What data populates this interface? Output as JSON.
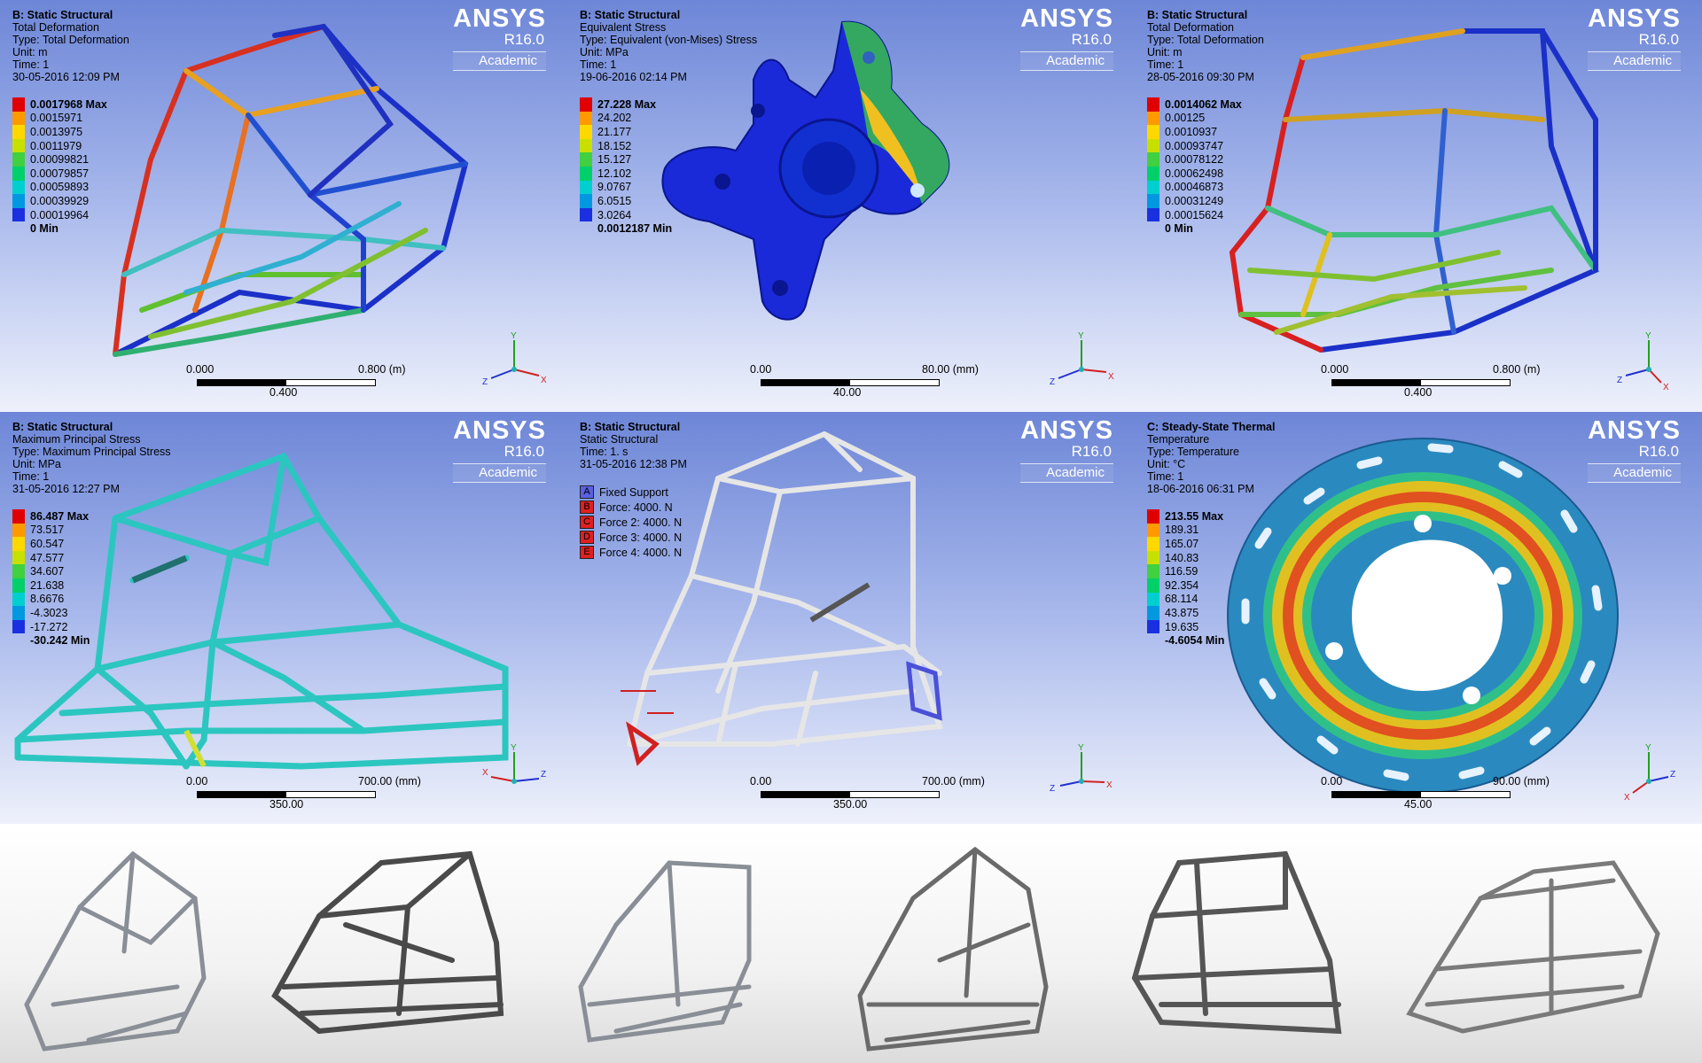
{
  "panels": [
    {
      "header": [
        "B: Static Structural",
        "Total Deformation",
        "Type: Total Deformation",
        "Unit: m",
        "Time: 1",
        "30-05-2016 12:09 PM"
      ],
      "brand": {
        "name": "ANSYS",
        "version": "R16.0",
        "edition": "Academic"
      },
      "legend": [
        "0.0017968 Max",
        "0.0015971",
        "0.0013975",
        "0.0011979",
        "0.00099821",
        "0.00079857",
        "0.00059893",
        "0.00039929",
        "0.00019964",
        "0 Min"
      ],
      "scale": {
        "start": "0.000",
        "end": "0.800 (m)",
        "mid": "0.400"
      },
      "triad": [
        "Y",
        "Z",
        "X"
      ]
    },
    {
      "header": [
        "B: Static Structural",
        "Equivalent Stress",
        "Type: Equivalent (von-Mises) Stress",
        "Unit: MPa",
        "Time: 1",
        "19-06-2016 02:14 PM"
      ],
      "brand": {
        "name": "ANSYS",
        "version": "R16.0",
        "edition": "Academic"
      },
      "legend": [
        "27.228 Max",
        "24.202",
        "21.177",
        "18.152",
        "15.127",
        "12.102",
        "9.0767",
        "6.0515",
        "3.0264",
        "0.0012187 Min"
      ],
      "scale": {
        "start": "0.00",
        "end": "80.00 (mm)",
        "mid": "40.00"
      },
      "triad": [
        "Y",
        "Z",
        "X"
      ]
    },
    {
      "header": [
        "B: Static Structural",
        "Total Deformation",
        "Type: Total Deformation",
        "Unit: m",
        "Time: 1",
        "28-05-2016 09:30 PM"
      ],
      "brand": {
        "name": "ANSYS",
        "version": "R16.0",
        "edition": "Academic"
      },
      "legend": [
        "0.0014062 Max",
        "0.00125",
        "0.0010937",
        "0.00093747",
        "0.00078122",
        "0.00062498",
        "0.00046873",
        "0.00031249",
        "0.00015624",
        "0 Min"
      ],
      "scale": {
        "start": "0.000",
        "end": "0.800 (m)",
        "mid": "0.400"
      },
      "triad": [
        "Y",
        "Z",
        "X"
      ]
    },
    {
      "header": [
        "B: Static Structural",
        "Maximum Principal Stress",
        "Type: Maximum Principal Stress",
        "Unit: MPa",
        "Time: 1",
        "31-05-2016 12:27 PM"
      ],
      "brand": {
        "name": "ANSYS",
        "version": "R16.0",
        "edition": "Academic"
      },
      "legend": [
        "86.487 Max",
        "73.517",
        "60.547",
        "47.577",
        "34.607",
        "21.638",
        "8.6676",
        "-4.3023",
        "-17.272",
        "-30.242 Min"
      ],
      "scale": {
        "start": "0.00",
        "end": "700.00 (mm)",
        "mid": "350.00"
      },
      "triad": [
        "Y",
        "X",
        "Z"
      ]
    },
    {
      "header": [
        "B: Static Structural",
        "Static Structural",
        "Time: 1. s",
        "31-05-2016 12:38 PM"
      ],
      "brand": {
        "name": "ANSYS",
        "version": "R16.0",
        "edition": "Academic"
      },
      "supports": [
        {
          "tag": "A",
          "label": "Fixed Support",
          "color": "#4a50d8"
        },
        {
          "tag": "B",
          "label": "Force: 4000. N",
          "color": "#e02020"
        },
        {
          "tag": "C",
          "label": "Force 2: 4000. N",
          "color": "#e02020"
        },
        {
          "tag": "D",
          "label": "Force 3: 4000. N",
          "color": "#e02020"
        },
        {
          "tag": "E",
          "label": "Force 4: 4000. N",
          "color": "#e02020"
        }
      ],
      "scale": {
        "start": "0.00",
        "end": "700.00 (mm)",
        "mid": "350.00"
      },
      "triad": [
        "Y",
        "Z",
        "X"
      ]
    },
    {
      "header": [
        "C: Steady-State Thermal",
        "Temperature",
        "Type: Temperature",
        "Unit: °C",
        "Time: 1",
        "18-06-2016 06:31 PM"
      ],
      "brand": {
        "name": "ANSYS",
        "version": "R16.0",
        "edition": "Academic"
      },
      "legend": [
        "213.55 Max",
        "189.31",
        "165.07",
        "140.83",
        "116.59",
        "92.354",
        "68.114",
        "43.875",
        "19.635",
        "-4.6054 Min"
      ],
      "scale": {
        "start": "0.00",
        "end": "90.00 (mm)",
        "mid": "45.00"
      },
      "triad": [
        "Y",
        "Z",
        "X"
      ]
    }
  ],
  "legend_colors": [
    "#e00000",
    "#ff9900",
    "#ffd800",
    "#c8e000",
    "#40d040",
    "#00d06a",
    "#00cfd0",
    "#0098e0",
    "#1a30e0"
  ],
  "photo_count": 6
}
